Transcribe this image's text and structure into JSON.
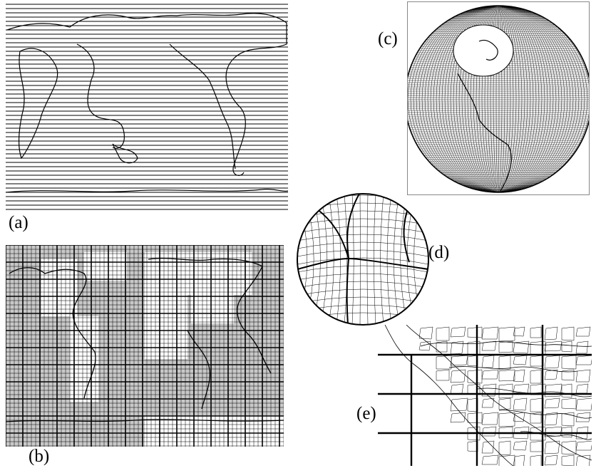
{
  "figure": {
    "labels": {
      "a": "(a)",
      "b": "(b)",
      "c": "(c)",
      "d": "(d)",
      "e": "(e)"
    },
    "colors": {
      "ink": "#000000",
      "ocean_fill_b": "#c8c8c8",
      "background": "#ffffff"
    }
  }
}
